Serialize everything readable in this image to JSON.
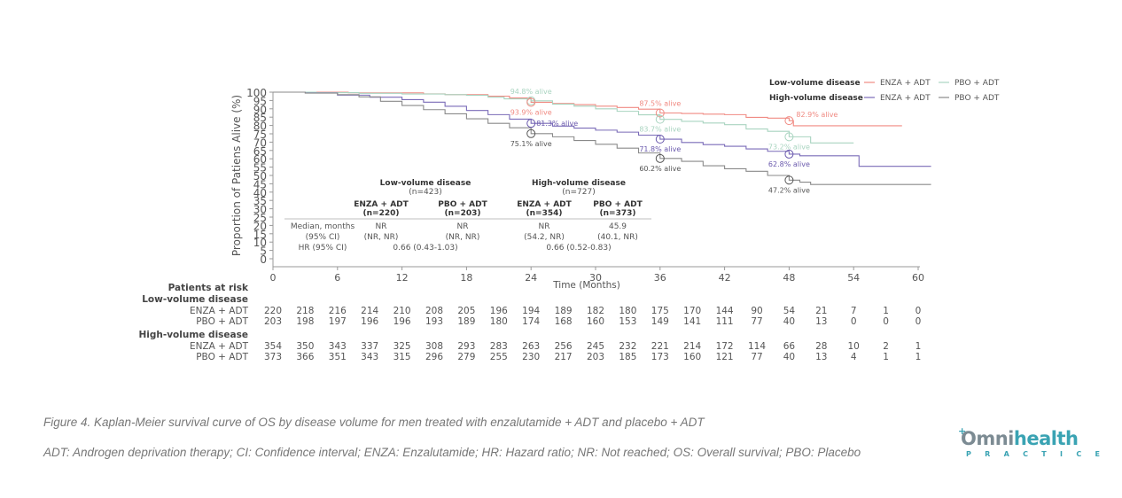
{
  "chart_data": {
    "type": "line",
    "subtype": "kaplan-meier",
    "xlabel": "Time (Months)",
    "ylabel": "Proportion of Patiens Alive (%)",
    "xlim": [
      0,
      60
    ],
    "ylim": [
      0,
      100
    ],
    "xticks": [
      0,
      6,
      12,
      18,
      24,
      30,
      36,
      42,
      48,
      54,
      60
    ],
    "yticks": [
      0,
      5,
      10,
      15,
      20,
      25,
      30,
      35,
      40,
      45,
      50,
      55,
      60,
      65,
      70,
      75,
      80,
      85,
      90,
      95,
      100
    ],
    "grid": false,
    "legend": {
      "placement": "top-right",
      "groups": [
        {
          "label": "Low-volume disease",
          "entries": [
            {
              "label": "ENZA + ADT",
              "color": "#f08a82"
            },
            {
              "label": "PBO + ADT",
              "color": "#a9d4c0"
            }
          ]
        },
        {
          "label": "High-volume disease",
          "entries": [
            {
              "label": "ENZA + ADT",
              "color": "#7a6bb8"
            },
            {
              "label": "PBO + ADT",
              "color": "#8a8a8a"
            }
          ]
        }
      ]
    },
    "series": [
      {
        "name": "Low-volume ENZA + ADT",
        "color": "#f08a82",
        "x": [
          0,
          7,
          14,
          16,
          20,
          22,
          24,
          26,
          28,
          30,
          32,
          34,
          36,
          38,
          40,
          42,
          44,
          46,
          48,
          48.4,
          58.5
        ],
        "y": [
          100,
          99.6,
          99.0,
          98.5,
          97.6,
          96.5,
          93.9,
          93.2,
          92.5,
          91.6,
          90.8,
          89.8,
          87.5,
          87.2,
          86.8,
          86.5,
          84.9,
          84.4,
          82.9,
          79.8,
          79.8
        ]
      },
      {
        "name": "Low-volume PBO + ADT",
        "color": "#a9d4c0",
        "x": [
          0,
          4,
          8,
          12,
          16,
          18,
          20,
          21.5,
          24,
          26,
          28,
          30,
          32,
          34,
          36,
          38,
          40,
          42,
          44,
          46,
          48,
          50,
          54
        ],
        "y": [
          100,
          99.7,
          99.3,
          98.9,
          98.5,
          98.1,
          97.0,
          96.0,
          94.8,
          92.8,
          91.6,
          90.0,
          88.5,
          86.4,
          83.7,
          82.5,
          81.5,
          80.5,
          77.9,
          76.5,
          73.2,
          69.5,
          69.5
        ]
      },
      {
        "name": "High-volume ENZA + ADT",
        "color": "#7a6bb8",
        "x": [
          0,
          3,
          6,
          9,
          12,
          14,
          16,
          18,
          20,
          22,
          24,
          26,
          28,
          30,
          32,
          34,
          36,
          38,
          40,
          42,
          44,
          46,
          48,
          49,
          54.5,
          61.2
        ],
        "y": [
          100,
          99.5,
          98.2,
          97.0,
          95.5,
          94.0,
          91.5,
          89.0,
          86.5,
          83.8,
          81.3,
          79.6,
          78.4,
          77.2,
          76.0,
          74.2,
          71.8,
          69.8,
          68.5,
          67.5,
          65.9,
          64.5,
          62.8,
          61.8,
          55.5,
          55.5
        ]
      },
      {
        "name": "High-volume PBO + ADT",
        "color": "#8a8a8a",
        "x": [
          0,
          3,
          6,
          8,
          10,
          12,
          14,
          16,
          18,
          20,
          22,
          24,
          26,
          28,
          30,
          32,
          34,
          36,
          38,
          40,
          42,
          44,
          46,
          48,
          49,
          50,
          61.2
        ],
        "y": [
          100,
          99.4,
          98.5,
          97.2,
          94.5,
          92.0,
          89.5,
          87.0,
          84.0,
          81.3,
          78.6,
          75.1,
          73.2,
          71.0,
          68.7,
          66.4,
          63.5,
          60.2,
          58.5,
          55.8,
          54.0,
          52.5,
          50.0,
          47.2,
          46.0,
          44.6,
          44.6
        ]
      }
    ],
    "annotations": [
      {
        "text": "94.8% alive",
        "x": 24,
        "y": 94.8,
        "color": "#a9d4c0",
        "series": "Low-volume PBO + ADT",
        "label_pos": "above"
      },
      {
        "text": "93.9% alive",
        "x": 24,
        "y": 93.9,
        "color": "#f08a82",
        "series": "Low-volume ENZA + ADT",
        "label_pos": "below"
      },
      {
        "text": "81.3% alive",
        "x": 24,
        "y": 81.3,
        "color": "#6a59ad",
        "series": "High-volume ENZA + ADT",
        "label_pos": "right"
      },
      {
        "text": "75.1% alive",
        "x": 24,
        "y": 75.1,
        "color": "#555555",
        "series": "High-volume PBO + ADT",
        "label_pos": "below"
      },
      {
        "text": "87.5% alive",
        "x": 36,
        "y": 87.5,
        "color": "#f08a82",
        "series": "Low-volume ENZA + ADT",
        "label_pos": "above"
      },
      {
        "text": "83.7% alive",
        "x": 36,
        "y": 83.7,
        "color": "#a9d4c0",
        "series": "Low-volume PBO + ADT",
        "label_pos": "below"
      },
      {
        "text": "71.8% alive",
        "x": 36,
        "y": 71.8,
        "color": "#6a59ad",
        "series": "High-volume ENZA + ADT",
        "label_pos": "below"
      },
      {
        "text": "60.2% alive",
        "x": 36,
        "y": 60.2,
        "color": "#555555",
        "series": "High-volume PBO + ADT",
        "label_pos": "below"
      },
      {
        "text": "82.9% alive",
        "x": 48,
        "y": 82.9,
        "color": "#f08a82",
        "series": "Low-volume ENZA + ADT",
        "label_pos": "above-right"
      },
      {
        "text": "73.2% alive",
        "x": 48,
        "y": 73.2,
        "color": "#a9d4c0",
        "series": "Low-volume PBO + ADT",
        "label_pos": "below"
      },
      {
        "text": "62.8% alive",
        "x": 48,
        "y": 62.8,
        "color": "#6a59ad",
        "series": "High-volume ENZA + ADT",
        "label_pos": "below"
      },
      {
        "text": "47.2% alive",
        "x": 48,
        "y": 47.2,
        "color": "#555555",
        "series": "High-volume PBO + ADT",
        "label_pos": "below"
      }
    ],
    "inset_table": {
      "groups": [
        {
          "title": "Low-volume disease",
          "n": "(n=423)"
        },
        {
          "title": "High-volume disease",
          "n": "(n=727)"
        }
      ],
      "columns": [
        {
          "arm": "ENZA + ADT",
          "n": "(n=220)"
        },
        {
          "arm": "PBO + ADT",
          "n": "(n=203)"
        },
        {
          "arm": "ENZA + ADT",
          "n": "(n=354)"
        },
        {
          "arm": "PBO + ADT",
          "n": "(n=373)"
        }
      ],
      "row_labels": [
        "Median, months",
        "(95% CI)",
        "HR (95% CI)"
      ],
      "medians": [
        "NR",
        "NR",
        "NR",
        "45.9"
      ],
      "ci": [
        "(NR, NR)",
        "(NR, NR)",
        "(54.2, NR)",
        "(40.1, NR)"
      ],
      "hr": [
        "0.66 (0.43-1.03)",
        "0.66 (0.52-0.83)"
      ]
    },
    "risk_table": {
      "title": "Patients at risk",
      "times": [
        0,
        3,
        6,
        9,
        12,
        15,
        18,
        21,
        24,
        27,
        30,
        33,
        36,
        39,
        42,
        45,
        48,
        51,
        54,
        57,
        60
      ],
      "groups": [
        {
          "label": "Low-volume disease",
          "rows": [
            {
              "label": "ENZA + ADT",
              "values": [
                220,
                218,
                216,
                214,
                210,
                208,
                205,
                196,
                194,
                189,
                182,
                180,
                175,
                170,
                144,
                90,
                54,
                21,
                7,
                1,
                0
              ]
            },
            {
              "label": "PBO + ADT",
              "values": [
                203,
                198,
                197,
                196,
                196,
                193,
                189,
                180,
                174,
                168,
                160,
                153,
                149,
                141,
                111,
                77,
                40,
                13,
                0,
                0,
                0
              ]
            }
          ]
        },
        {
          "label": "High-volume disease",
          "rows": [
            {
              "label": "ENZA + ADT",
              "values": [
                354,
                350,
                343,
                337,
                325,
                308,
                293,
                283,
                263,
                256,
                245,
                232,
                221,
                214,
                172,
                114,
                66,
                28,
                10,
                2,
                1
              ]
            },
            {
              "label": "PBO + ADT",
              "values": [
                373,
                366,
                351,
                343,
                315,
                296,
                279,
                255,
                230,
                217,
                203,
                185,
                173,
                160,
                121,
                77,
                40,
                13,
                4,
                1,
                1
              ]
            }
          ]
        }
      ]
    }
  },
  "captions": {
    "figure": "Figure 4. Kaplan-Meier survival curve of OS by disease volume for men treated with enzalutamide + ADT and placebo + ADT",
    "abbreviations": "ADT: Androgen deprivation therapy; CI: Confidence interval; ENZA: Enzalutamide; HR: Hazard ratio; NR: Not reached; OS: Overall survival; PBO: Placebo"
  },
  "logo": {
    "prefix": "Omni",
    "main": "health",
    "sub": "PRACTICE",
    "color": "#3aa3b3"
  }
}
